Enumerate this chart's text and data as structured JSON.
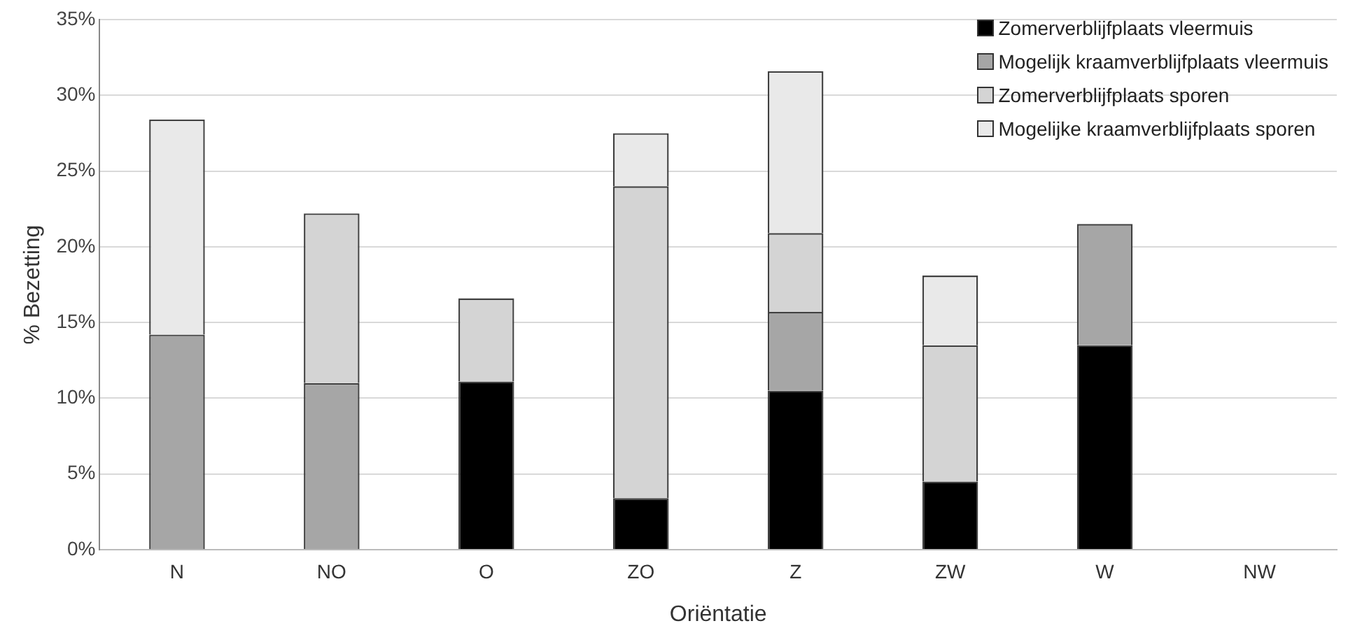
{
  "chart_data": {
    "type": "bar",
    "stacked": true,
    "xlabel": "Oriëntatie",
    "ylabel": "% Bezetting",
    "categories": [
      "N",
      "NO",
      "O",
      "ZO",
      "Z",
      "ZW",
      "W",
      "NW"
    ],
    "series": [
      {
        "name": "Zomerverblijfplaats vleermuis",
        "color": "#000000",
        "values": [
          0,
          0,
          11.1,
          3.4,
          10.5,
          4.5,
          13.5,
          0
        ]
      },
      {
        "name": "Mogelijk kraamverblijfplaats vleermuis",
        "color": "#a6a6a6",
        "values": [
          14.2,
          11.0,
          0,
          0,
          5.2,
          0,
          8.0,
          0
        ]
      },
      {
        "name": "Zomerverblijfplaats sporen",
        "color": "#d4d4d4",
        "values": [
          0,
          11.2,
          5.5,
          20.6,
          5.2,
          9.0,
          0,
          0
        ]
      },
      {
        "name": "Mogelijke kraamverblijfplaats sporen",
        "color": "#e9e9e9",
        "values": [
          14.2,
          0,
          0,
          3.5,
          10.7,
          4.6,
          0,
          0
        ]
      }
    ],
    "ylim": [
      0,
      35
    ],
    "yticks": [
      {
        "value": 0,
        "label": "0%"
      },
      {
        "value": 5,
        "label": "5%"
      },
      {
        "value": 10,
        "label": "10%"
      },
      {
        "value": 15,
        "label": "15%"
      },
      {
        "value": 20,
        "label": "20%"
      },
      {
        "value": 25,
        "label": "25%"
      },
      {
        "value": 30,
        "label": "30%"
      },
      {
        "value": 35,
        "label": "35%"
      }
    ],
    "grid": "y",
    "legend": "top right"
  }
}
